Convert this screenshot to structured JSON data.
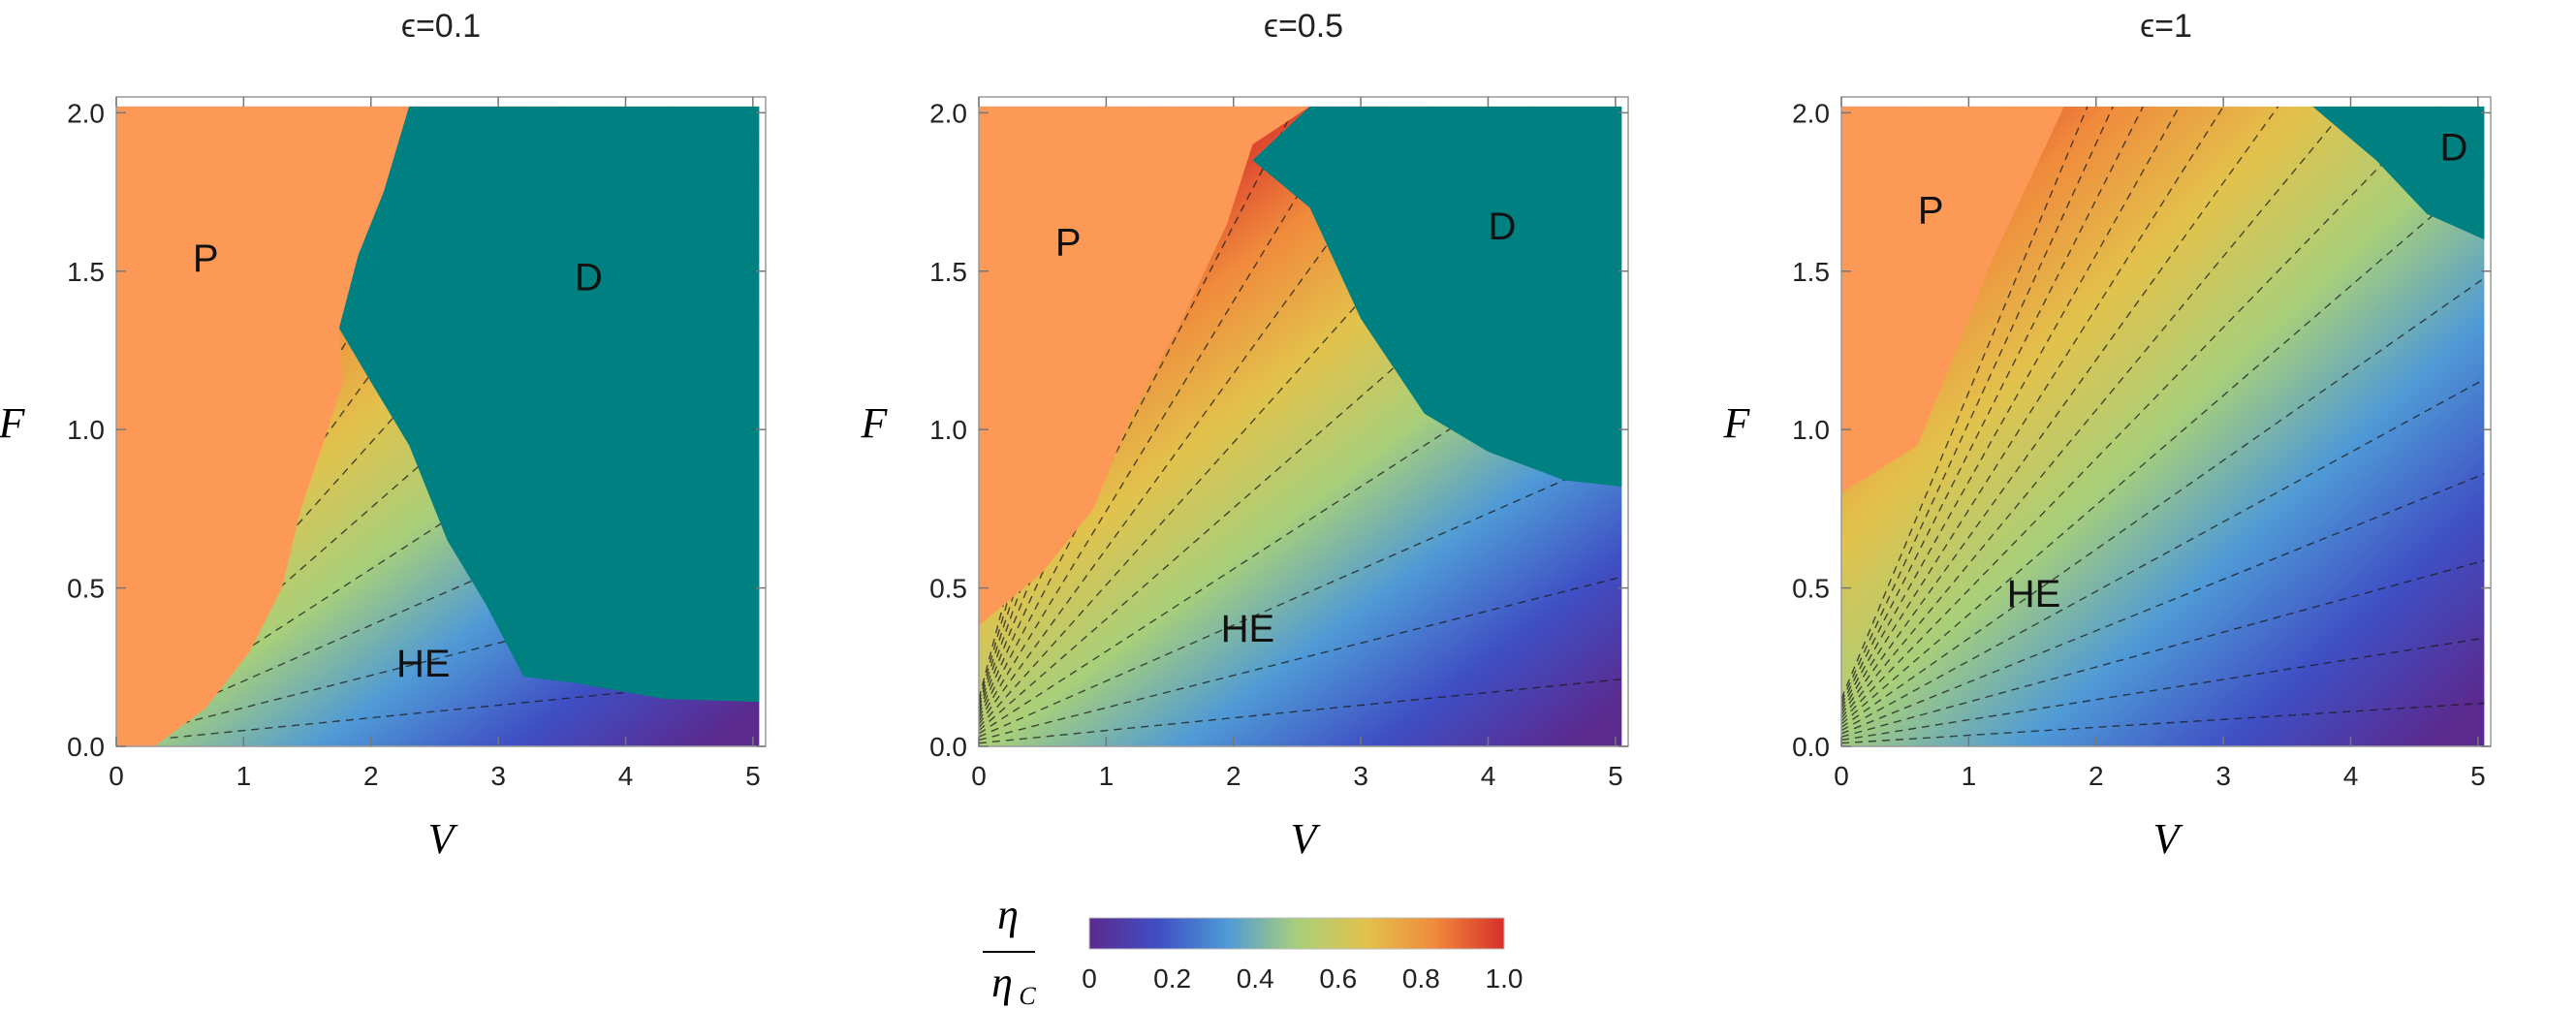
{
  "chart_data": {
    "type": "heatmap",
    "figure": {
      "colorbar": {
        "label_numerator": "η",
        "label_denominator": "η",
        "label_denominator_sub": "C",
        "ticks": [
          "0",
          "0.2",
          "0.4",
          "0.6",
          "0.8",
          "1.0"
        ],
        "tick_values": [
          0,
          0.2,
          0.4,
          0.6,
          0.8,
          1.0
        ],
        "range": [
          0,
          1
        ],
        "colors": [
          "#5b2a8e",
          "#3f4fc4",
          "#4f9ad6",
          "#a8cf7a",
          "#e2c24c",
          "#f08a3c",
          "#d7302a"
        ]
      },
      "colors": {
        "P": "#fd9956",
        "D": "#008080",
        "contour": "#1a1a1a"
      }
    },
    "panels": [
      {
        "title": "ϵ=0.1",
        "xlabel": "V",
        "ylabel": "F",
        "xlim": [
          0,
          5.1
        ],
        "ylim": [
          0,
          2.05
        ],
        "xticks": [
          "0",
          "1",
          "2",
          "3",
          "4",
          "5"
        ],
        "yticks": [
          "0.0",
          "0.5",
          "1.0",
          "1.5",
          "2.0"
        ],
        "regions": [
          {
            "name": "P",
            "label_at": [
              0.6,
              1.5
            ],
            "boundary": [
              [
                0,
                2.02
              ],
              [
                2.3,
                2.02
              ],
              [
                2.1,
                1.75
              ],
              [
                1.9,
                1.55
              ],
              [
                1.75,
                1.32
              ],
              [
                1.78,
                1.15
              ],
              [
                1.62,
                0.95
              ],
              [
                1.45,
                0.75
              ],
              [
                1.3,
                0.5
              ],
              [
                1.05,
                0.3
              ],
              [
                0.7,
                0.12
              ],
              [
                0.3,
                0.0
              ],
              [
                0,
                0.0
              ]
            ]
          },
          {
            "name": "D",
            "label_at": [
              3.6,
              1.44
            ],
            "boundary": [
              [
                2.3,
                2.02
              ],
              [
                5.05,
                2.02
              ],
              [
                5.05,
                0.14
              ],
              [
                4.3,
                0.15
              ],
              [
                3.6,
                0.2
              ],
              [
                3.2,
                0.22
              ],
              [
                2.9,
                0.45
              ],
              [
                2.6,
                0.65
              ],
              [
                2.3,
                0.95
              ],
              [
                2.0,
                1.15
              ],
              [
                1.75,
                1.32
              ],
              [
                1.9,
                1.55
              ],
              [
                2.1,
                1.75
              ]
            ]
          },
          {
            "name": "HE",
            "label_at": [
              2.2,
              0.22
            ]
          }
        ]
      },
      {
        "title": "ϵ=0.5",
        "xlabel": "V",
        "ylabel": "F",
        "xlim": [
          0,
          5.1
        ],
        "ylim": [
          0,
          2.05
        ],
        "xticks": [
          "0",
          "1",
          "2",
          "3",
          "4",
          "5"
        ],
        "yticks": [
          "0.0",
          "0.5",
          "1.0",
          "1.5",
          "2.0"
        ],
        "regions": [
          {
            "name": "P",
            "label_at": [
              0.6,
              1.55
            ],
            "boundary": [
              [
                0,
                2.02
              ],
              [
                2.6,
                2.02
              ],
              [
                2.15,
                1.9
              ],
              [
                1.95,
                1.65
              ],
              [
                1.6,
                1.35
              ],
              [
                1.2,
                1.05
              ],
              [
                0.9,
                0.75
              ],
              [
                0.5,
                0.55
              ],
              [
                0,
                0.38
              ]
            ]
          },
          {
            "name": "D",
            "label_at": [
              4.0,
              1.6
            ],
            "boundary": [
              [
                2.6,
                2.02
              ],
              [
                5.05,
                2.02
              ],
              [
                5.05,
                0.82
              ],
              [
                4.6,
                0.84
              ],
              [
                4.0,
                0.93
              ],
              [
                3.5,
                1.05
              ],
              [
                3.0,
                1.35
              ],
              [
                2.6,
                1.7
              ],
              [
                2.15,
                1.85
              ]
            ]
          },
          {
            "name": "HE",
            "label_at": [
              1.9,
              0.33
            ]
          }
        ]
      },
      {
        "title": "ϵ=1",
        "xlabel": "V",
        "ylabel": "F",
        "xlim": [
          0,
          5.1
        ],
        "ylim": [
          0,
          2.05
        ],
        "xticks": [
          "0",
          "1",
          "2",
          "3",
          "4",
          "5"
        ],
        "yticks": [
          "0.0",
          "0.5",
          "1.0",
          "1.5",
          "2.0"
        ],
        "regions": [
          {
            "name": "P",
            "label_at": [
              0.6,
              1.65
            ],
            "boundary": [
              [
                0,
                2.02
              ],
              [
                1.75,
                2.02
              ],
              [
                1.2,
                1.55
              ],
              [
                0.9,
                1.25
              ],
              [
                0.6,
                0.95
              ],
              [
                0.2,
                0.85
              ],
              [
                0,
                0.8
              ]
            ]
          },
          {
            "name": "D",
            "label_at": [
              4.7,
              1.85
            ],
            "boundary": [
              [
                3.7,
                2.02
              ],
              [
                5.05,
                2.02
              ],
              [
                5.05,
                1.6
              ],
              [
                4.6,
                1.68
              ],
              [
                4.2,
                1.85
              ]
            ]
          },
          {
            "name": "HE",
            "label_at": [
              1.3,
              0.44
            ]
          }
        ]
      }
    ]
  }
}
